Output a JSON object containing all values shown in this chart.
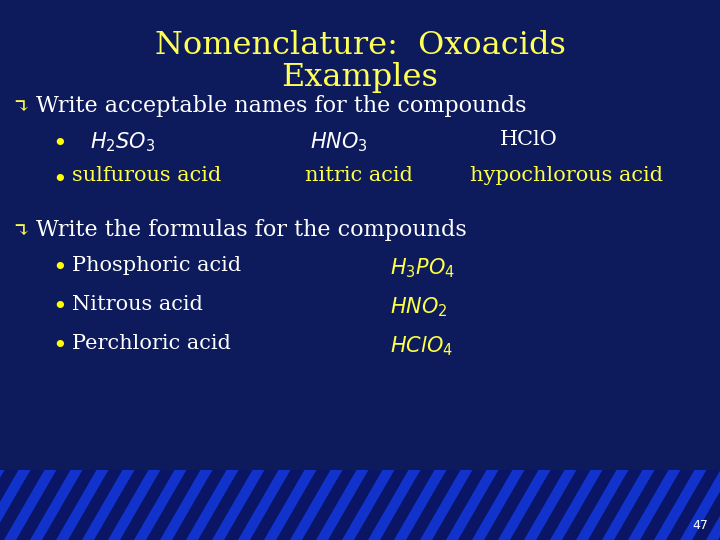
{
  "title_line1": "Nomenclature:  Oxoacids",
  "title_line2": "Examples",
  "title_color": "#FFFF55",
  "bg_color": "#0D1A5C",
  "white_text": "#FFFFFF",
  "yellow_text": "#FFFF44",
  "bullet_color": "#FFFF00",
  "arrow_color": "#FFFF44",
  "page_number": "47",
  "section1_header": "Write acceptable names for the compounds",
  "section2_header": "Write the formulas for the compounds",
  "row1_formula1": "$H_2SO_3$",
  "row1_formula2": "$HNO_3$",
  "row1_formula3": "HClO",
  "row1_name1": "sulfurous acid",
  "row1_name2": "nitric acid",
  "row1_name3": "hypochlorous acid",
  "item1_name": "Phosphoric acid",
  "item1_formula": "$H_3PO_4$",
  "item2_name": "Nitrous acid",
  "item2_formula": "$HNO_2$",
  "item3_name": "Perchloric acid",
  "item3_formula": "$HClO_4$",
  "stripe_bg": "#1133CC",
  "stripe_dark": "#0A1566"
}
